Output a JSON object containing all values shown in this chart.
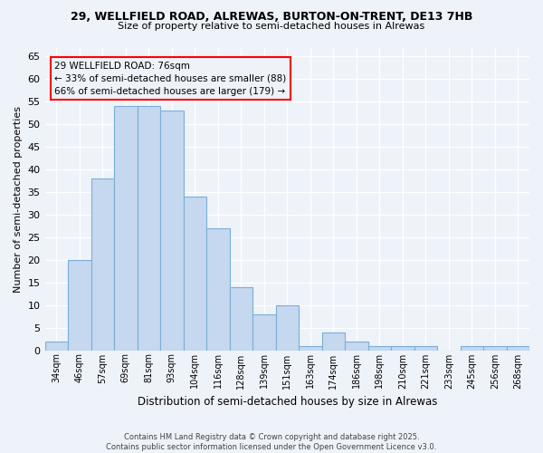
{
  "title1": "29, WELLFIELD ROAD, ALREWAS, BURTON-ON-TRENT, DE13 7HB",
  "title2": "Size of property relative to semi-detached houses in Alrewas",
  "xlabel": "Distribution of semi-detached houses by size in Alrewas",
  "ylabel": "Number of semi-detached properties",
  "categories": [
    "34sqm",
    "46sqm",
    "57sqm",
    "69sqm",
    "81sqm",
    "93sqm",
    "104sqm",
    "116sqm",
    "128sqm",
    "139sqm",
    "151sqm",
    "163sqm",
    "174sqm",
    "186sqm",
    "198sqm",
    "210sqm",
    "221sqm",
    "233sqm",
    "245sqm",
    "256sqm",
    "268sqm"
  ],
  "values": [
    2,
    20,
    38,
    54,
    54,
    53,
    34,
    27,
    14,
    8,
    10,
    1,
    4,
    2,
    1,
    1,
    1,
    0,
    1,
    1,
    1
  ],
  "bar_color": "#c5d8f0",
  "bar_edge_color": "#7bafd4",
  "annotation_text": "29 WELLFIELD ROAD: 76sqm\n← 33% of semi-detached houses are smaller (88)\n66% of semi-detached houses are larger (179) →",
  "ylim": [
    0,
    67
  ],
  "yticks": [
    0,
    5,
    10,
    15,
    20,
    25,
    30,
    35,
    40,
    45,
    50,
    55,
    60,
    65
  ],
  "footnote": "Contains HM Land Registry data © Crown copyright and database right 2025.\nContains public sector information licensed under the Open Government Licence v3.0.",
  "background_color": "#eef2f9",
  "grid_color": "#ffffff",
  "bar_width": 1.0
}
